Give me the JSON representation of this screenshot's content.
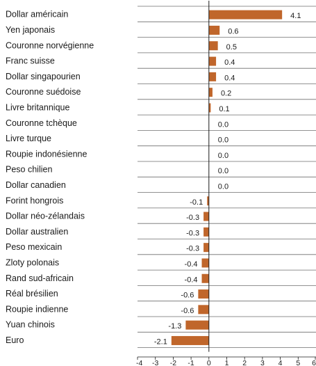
{
  "chart_data": {
    "type": "bar",
    "orientation": "horizontal",
    "title": "",
    "xlabel": "",
    "ylabel": "",
    "xlim": [
      -4,
      6
    ],
    "x_ticks": [
      "-4",
      "-3",
      "-2",
      "-1",
      "0",
      "1",
      "2",
      "3",
      "4",
      "5",
      "6"
    ],
    "grid": "horizontal row separators",
    "legend": "none",
    "bar_color": "#c0662b",
    "categories": [
      "Dollar américain",
      "Yen japonais",
      "Couronne norvégienne",
      "Franc suisse",
      "Dollar singapourien",
      "Couronne suédoise",
      "Livre britannique",
      "Couronne tchèque",
      "Livre turque",
      "Roupie indonésienne",
      "Peso chilien",
      "Dollar canadien",
      "Forint hongrois",
      "Dollar néo-zélandais",
      "Dollar australien",
      "Peso mexicain",
      "Zloty polonais",
      "Rand sud-africain",
      "Réal brésilien",
      "Roupie indienne",
      "Yuan chinois",
      "Euro"
    ],
    "values": [
      4.1,
      0.6,
      0.5,
      0.4,
      0.4,
      0.2,
      0.1,
      0.0,
      0.0,
      0.0,
      0.0,
      0.0,
      -0.1,
      -0.3,
      -0.3,
      -0.3,
      -0.4,
      -0.4,
      -0.6,
      -0.6,
      -1.3,
      -2.1
    ],
    "value_labels": [
      "4.1",
      "0.6",
      "0.5",
      "0.4",
      "0.4",
      "0.2",
      "0.1",
      "0.0",
      "0.0",
      "0.0",
      "0.0",
      "0.0",
      "-0.1",
      "-0.3",
      "-0.3",
      "-0.3",
      "-0.4",
      "-0.4",
      "-0.6",
      "-0.6",
      "-1.3",
      "-2.1"
    ]
  }
}
